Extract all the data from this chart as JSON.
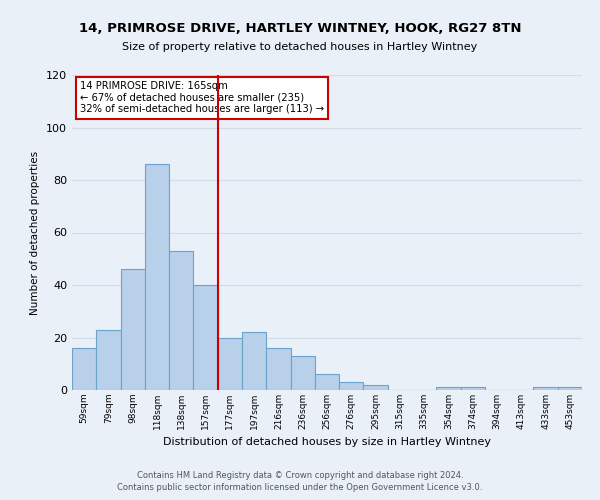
{
  "title": "14, PRIMROSE DRIVE, HARTLEY WINTNEY, HOOK, RG27 8TN",
  "subtitle": "Size of property relative to detached houses in Hartley Wintney",
  "xlabel": "Distribution of detached houses by size in Hartley Wintney",
  "ylabel": "Number of detached properties",
  "bar_labels": [
    "59sqm",
    "79sqm",
    "98sqm",
    "118sqm",
    "138sqm",
    "157sqm",
    "177sqm",
    "197sqm",
    "216sqm",
    "236sqm",
    "256sqm",
    "276sqm",
    "295sqm",
    "315sqm",
    "335sqm",
    "354sqm",
    "374sqm",
    "394sqm",
    "413sqm",
    "433sqm",
    "453sqm"
  ],
  "bar_values": [
    16,
    23,
    46,
    86,
    53,
    40,
    20,
    22,
    16,
    13,
    6,
    3,
    2,
    0,
    0,
    1,
    1,
    0,
    0,
    1,
    1
  ],
  "bar_color": "#b8d0ea",
  "bar_edge_color": "#6ba3cc",
  "vline_x": 5.5,
  "vline_color": "#cc0000",
  "ylim": [
    0,
    120
  ],
  "yticks": [
    0,
    20,
    40,
    60,
    80,
    100,
    120
  ],
  "annotation_line1": "14 PRIMROSE DRIVE: 165sqm",
  "annotation_line2": "← 67% of detached houses are smaller (235)",
  "annotation_line3": "32% of semi-detached houses are larger (113) →",
  "annotation_box_color": "#ffffff",
  "annotation_box_edge": "#cc0000",
  "footer1": "Contains HM Land Registry data © Crown copyright and database right 2024.",
  "footer2": "Contains public sector information licensed under the Open Government Licence v3.0.",
  "background_color": "#eaf0f8",
  "grid_color": "#d0dce8"
}
